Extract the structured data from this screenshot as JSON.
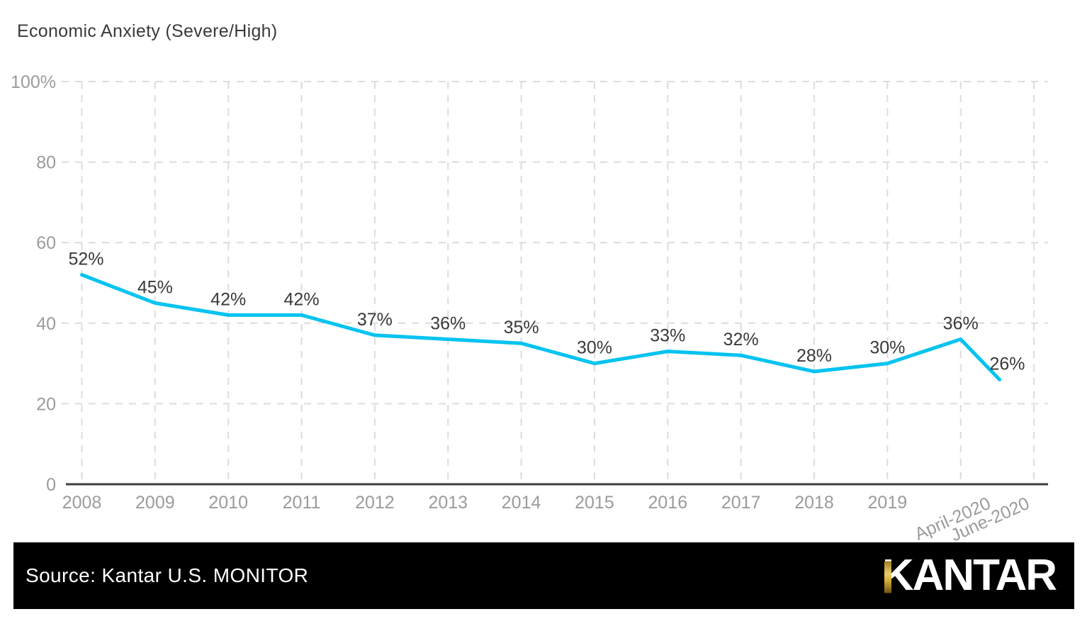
{
  "page": {
    "background": "#ffffff"
  },
  "chart_data": {
    "type": "line",
    "title": "Economic Anxiety (Severe/High)",
    "series_name": "Economic Anxiety (Severe/High)",
    "categories": [
      "2008",
      "2009",
      "2010",
      "2011",
      "2012",
      "2013",
      "2014",
      "2015",
      "2016",
      "2017",
      "2018",
      "2019",
      "April-2020",
      "June-2020"
    ],
    "values": [
      52,
      45,
      42,
      42,
      37,
      36,
      35,
      30,
      33,
      32,
      28,
      30,
      36,
      26
    ],
    "point_labels": [
      "52%",
      "45%",
      "42%",
      "42%",
      "37%",
      "36%",
      "35%",
      "30%",
      "33%",
      "32%",
      "28%",
      "30%",
      "36%",
      "26%"
    ],
    "xlabel": "",
    "ylabel": "",
    "ylim": [
      0,
      100
    ],
    "yticks": [
      {
        "value": 100,
        "label": "100%"
      },
      {
        "value": 80,
        "label": "80"
      },
      {
        "value": 60,
        "label": "60"
      },
      {
        "value": 40,
        "label": "40"
      },
      {
        "value": 20,
        "label": "20"
      },
      {
        "value": 0,
        "label": "0"
      }
    ],
    "grid": "dashed",
    "legend": "none",
    "colors": {
      "line": "#00C3F0",
      "data_label": "#3a3a3a",
      "tick_label": "#9b9b9b",
      "grid": "#dcdcdc",
      "axis": "#3e3e3e"
    },
    "layout_hints": {
      "rotated_tick_from_index": 12,
      "tick_rotation_deg": -24,
      "last_point_x_fraction": 0.53
    }
  },
  "footer": {
    "source_label": "Source: Kantar U.S. MONITOR",
    "logo_text": "KANTAR",
    "background": "#000000",
    "text_color": "#ffffff",
    "gold_color": "#c9a227"
  }
}
